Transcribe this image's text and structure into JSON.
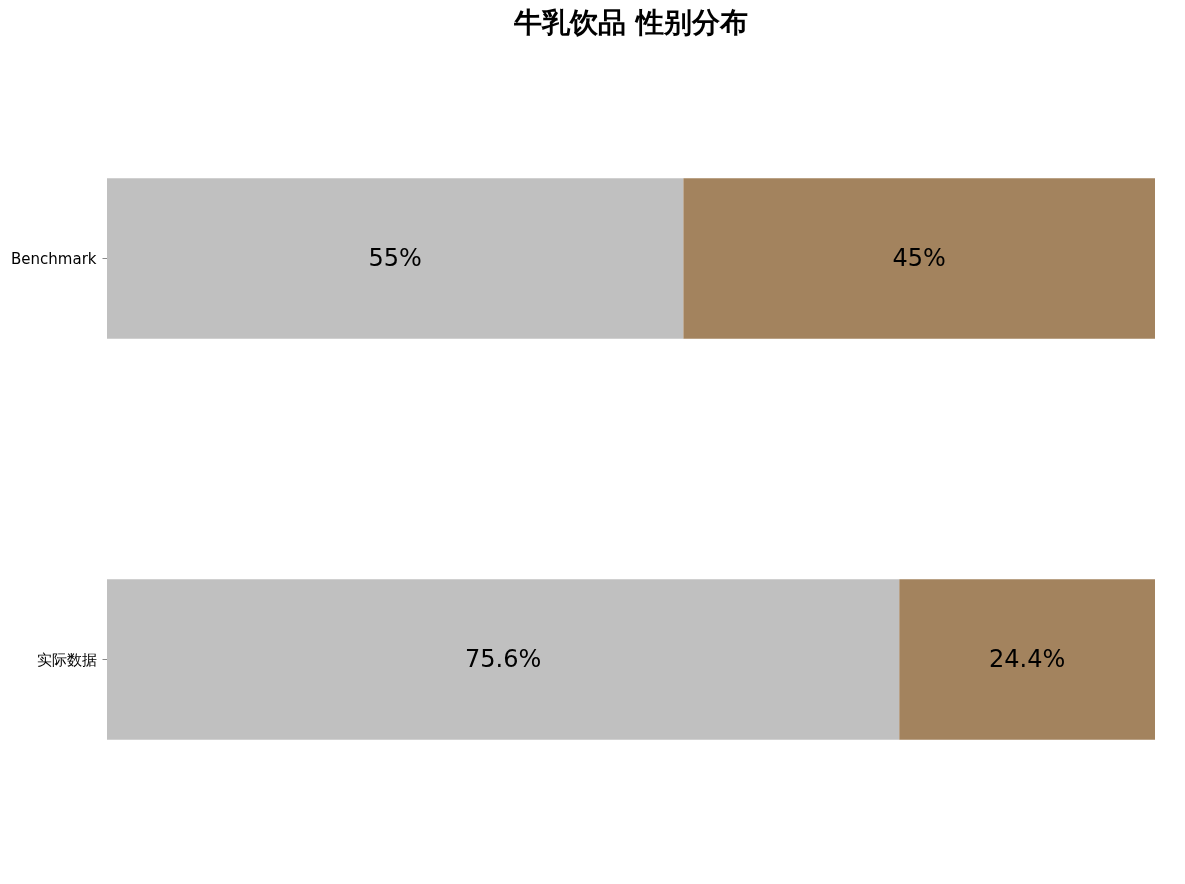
{
  "chart_data": {
    "type": "bar",
    "title": "牛乳饮品 性别分布",
    "orientation": "horizontal",
    "stacked": true,
    "categories": [
      "Benchmark",
      "实际数据"
    ],
    "series": [
      {
        "color": "#c0c0c0",
        "values": [
          55,
          75.6
        ],
        "value_labels": [
          "55%",
          "75.6%"
        ]
      },
      {
        "color": "#a3835e",
        "values": [
          45,
          24.4
        ],
        "value_labels": [
          "45%",
          "24.4%"
        ]
      }
    ],
    "grid": false
  }
}
